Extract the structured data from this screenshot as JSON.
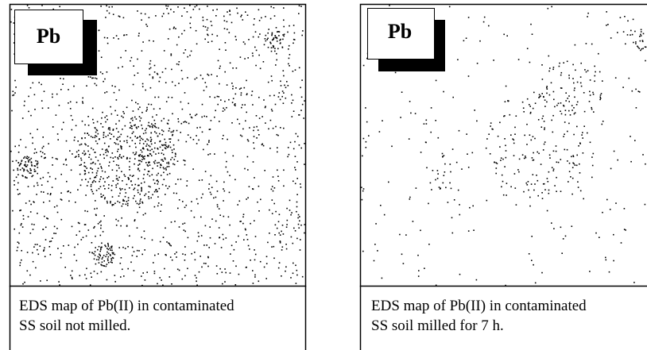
{
  "panels": [
    {
      "label": "Pb",
      "caption": [
        "EDS map of Pb(II) in contaminated",
        "SS soil not milled."
      ]
    },
    {
      "label": "Pb",
      "caption": [
        "EDS map of Pb(II) in contaminated",
        "SS soil milled for 7 h."
      ]
    }
  ]
}
